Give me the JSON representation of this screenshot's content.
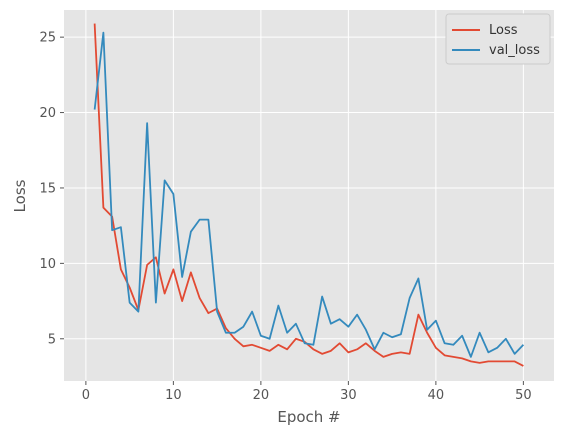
{
  "chart_data": {
    "type": "line",
    "xlabel": "Epoch #",
    "ylabel": "Loss",
    "xlim": [
      -2.5,
      53.5
    ],
    "ylim": [
      2.2,
      26.8
    ],
    "xticks": [
      0,
      10,
      20,
      30,
      40,
      50
    ],
    "yticks": [
      5,
      10,
      15,
      20,
      25
    ],
    "grid": true,
    "legend_position": "top-right",
    "x": [
      1,
      2,
      3,
      4,
      5,
      6,
      7,
      8,
      9,
      10,
      11,
      12,
      13,
      14,
      15,
      16,
      17,
      18,
      19,
      20,
      21,
      22,
      23,
      24,
      25,
      26,
      27,
      28,
      29,
      30,
      31,
      32,
      33,
      34,
      35,
      36,
      37,
      38,
      39,
      40,
      41,
      42,
      43,
      44,
      45,
      46,
      47,
      48,
      49,
      50
    ],
    "series": [
      {
        "name": "Loss",
        "color": "#E24A33",
        "values": [
          25.9,
          13.7,
          13.1,
          9.6,
          8.4,
          6.9,
          9.9,
          10.4,
          8.0,
          9.6,
          7.5,
          9.4,
          7.7,
          6.7,
          7.0,
          5.7,
          5.0,
          4.5,
          4.6,
          4.4,
          4.2,
          4.6,
          4.3,
          5.0,
          4.8,
          4.3,
          4.0,
          4.2,
          4.7,
          4.1,
          4.3,
          4.7,
          4.2,
          3.8,
          4.0,
          4.1,
          4.0,
          6.6,
          5.4,
          4.4,
          3.9,
          3.8,
          3.7,
          3.5,
          3.4,
          3.5,
          3.5,
          3.5,
          3.5,
          3.2
        ]
      },
      {
        "name": "val_loss",
        "color": "#348ABD",
        "values": [
          20.2,
          25.3,
          12.2,
          12.4,
          7.4,
          6.8,
          19.3,
          7.4,
          15.5,
          14.6,
          9.1,
          12.1,
          12.9,
          12.9,
          6.8,
          5.4,
          5.4,
          5.8,
          6.8,
          5.2,
          5.0,
          7.2,
          5.4,
          6.0,
          4.7,
          4.6,
          7.8,
          6.0,
          6.3,
          5.8,
          6.6,
          5.6,
          4.3,
          5.4,
          5.1,
          5.3,
          7.7,
          9.0,
          5.6,
          6.2,
          4.7,
          4.6,
          5.2,
          3.8,
          5.4,
          4.1,
          4.4,
          5.0,
          4.0,
          4.6
        ]
      }
    ]
  }
}
